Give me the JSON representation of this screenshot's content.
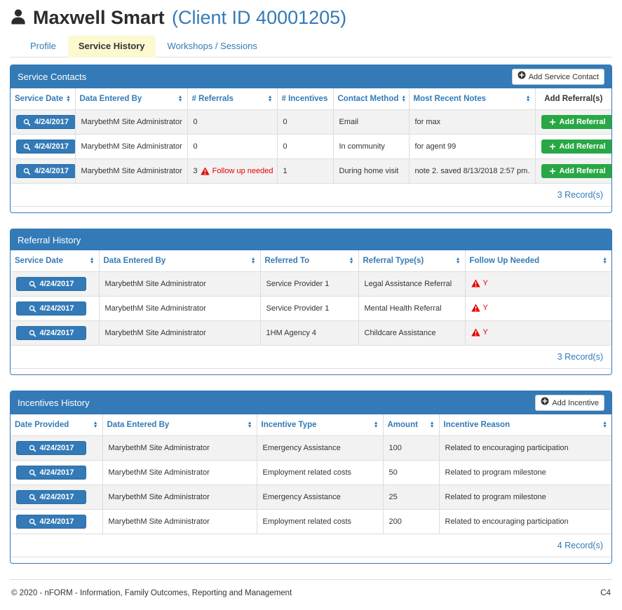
{
  "colors": {
    "accent_blue": "#337ab7",
    "accent_blue_dark": "#2e6da4",
    "success_green": "#28a745",
    "alert_red": "#e60000",
    "active_tab_yellow": "#fcf8cf",
    "stripe_gray": "#f2f2f2",
    "border_gray": "#dddddd"
  },
  "header": {
    "client_name": "Maxwell Smart",
    "client_id": "(Client ID 40001205)"
  },
  "tabs": [
    {
      "label": "Profile",
      "active": false
    },
    {
      "label": "Service History",
      "active": true
    },
    {
      "label": "Workshops / Sessions",
      "active": false
    }
  ],
  "panels": {
    "service_contacts": {
      "title": "Service Contacts",
      "add_button_label": "Add Service Contact",
      "add_referral_label": "Add Referral",
      "record_count": "3 Record(s)",
      "columns": [
        {
          "key": "date",
          "label": "Service Date",
          "sortable": true,
          "type": "date_button"
        },
        {
          "key": "entered_by",
          "label": "Data Entered By",
          "sortable": true
        },
        {
          "key": "referrals",
          "label": "# Referrals",
          "sortable": true,
          "type": "referrals_flag"
        },
        {
          "key": "incentives",
          "label": "# Incentives",
          "sortable": true
        },
        {
          "key": "contact_method",
          "label": "Contact Method",
          "sortable": true
        },
        {
          "key": "notes",
          "label": "Most Recent Notes",
          "sortable": true
        },
        {
          "key": "add_referral",
          "label": "Add Referral(s)",
          "sortable": false,
          "type": "add_referral",
          "dark": true
        }
      ],
      "rows": [
        {
          "date": "4/24/2017",
          "entered_by": "MarybethM Site Administrator",
          "referrals": "0",
          "followup_flag": false,
          "followup_label": "",
          "incentives": "0",
          "contact_method": "Email",
          "notes": "for max"
        },
        {
          "date": "4/24/2017",
          "entered_by": "MarybethM Site Administrator",
          "referrals": "0",
          "followup_flag": false,
          "followup_label": "",
          "incentives": "0",
          "contact_method": "In community",
          "notes": "for agent 99"
        },
        {
          "date": "4/24/2017",
          "entered_by": "MarybethM Site Administrator",
          "referrals": "3",
          "followup_flag": true,
          "followup_label": "Follow up needed",
          "incentives": "1",
          "contact_method": "During home visit",
          "notes": "note 2. saved 8/13/2018 2:57 pm."
        }
      ]
    },
    "referral_history": {
      "title": "Referral History",
      "record_count": "3 Record(s)",
      "columns": [
        {
          "key": "date",
          "label": "Service Date",
          "sortable": true,
          "type": "date_button"
        },
        {
          "key": "entered_by",
          "label": "Data Entered By",
          "sortable": true
        },
        {
          "key": "referred_to",
          "label": "Referred To",
          "sortable": true
        },
        {
          "key": "referral_type",
          "label": "Referral Type(s)",
          "sortable": true
        },
        {
          "key": "follow_up",
          "label": "Follow Up Needed",
          "sortable": true,
          "type": "follow_up_flag"
        }
      ],
      "rows": [
        {
          "date": "4/24/2017",
          "entered_by": "MarybethM Site Administrator",
          "referred_to": "Service Provider 1",
          "referral_type": "Legal Assistance Referral",
          "follow_up": "Y"
        },
        {
          "date": "4/24/2017",
          "entered_by": "MarybethM Site Administrator",
          "referred_to": "Service Provider 1",
          "referral_type": "Mental Health Referral",
          "follow_up": "Y"
        },
        {
          "date": "4/24/2017",
          "entered_by": "MarybethM Site Administrator",
          "referred_to": "1HM Agency 4",
          "referral_type": "Childcare Assistance",
          "follow_up": "Y"
        }
      ]
    },
    "incentives_history": {
      "title": "Incentives History",
      "add_button_label": "Add Incentive",
      "record_count": "4 Record(s)",
      "columns": [
        {
          "key": "date",
          "label": "Date Provided",
          "sortable": true,
          "type": "date_button"
        },
        {
          "key": "entered_by",
          "label": "Data Entered By",
          "sortable": true
        },
        {
          "key": "incentive_type",
          "label": "Incentive Type",
          "sortable": true
        },
        {
          "key": "amount",
          "label": "Amount",
          "sortable": true
        },
        {
          "key": "reason",
          "label": "Incentive Reason",
          "sortable": true
        }
      ],
      "rows": [
        {
          "date": "4/24/2017",
          "entered_by": "MarybethM Site Administrator",
          "incentive_type": "Emergency Assistance",
          "amount": "100",
          "reason": "Related to encouraging participation"
        },
        {
          "date": "4/24/2017",
          "entered_by": "MarybethM Site Administrator",
          "incentive_type": "Employment related costs",
          "amount": "50",
          "reason": "Related to program milestone"
        },
        {
          "date": "4/24/2017",
          "entered_by": "MarybethM Site Administrator",
          "incentive_type": "Emergency Assistance",
          "amount": "25",
          "reason": "Related to program milestone"
        },
        {
          "date": "4/24/2017",
          "entered_by": "MarybethM Site Administrator",
          "incentive_type": "Employment related costs",
          "amount": "200",
          "reason": "Related to encouraging participation"
        }
      ]
    }
  },
  "footer": {
    "copyright": "© 2020 - nFORM - Information, Family Outcomes, Reporting and Management",
    "page_code": "C4"
  }
}
